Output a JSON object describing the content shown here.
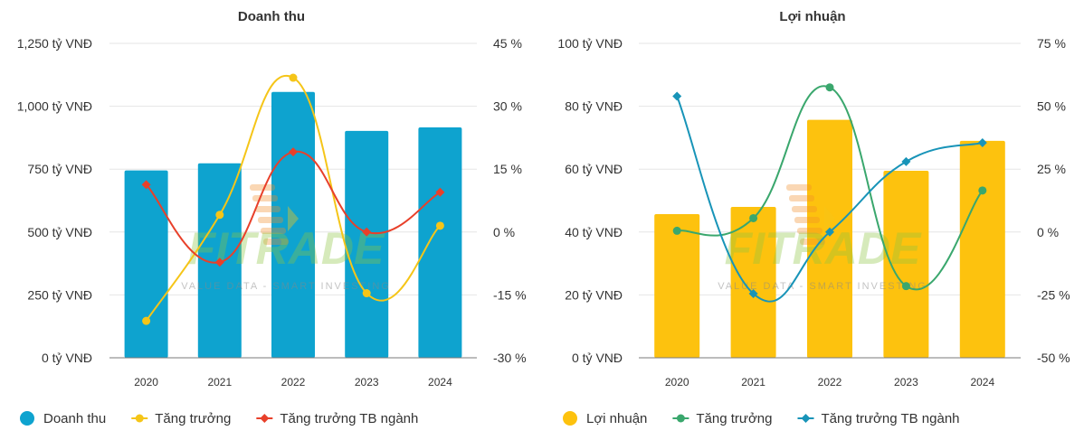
{
  "charts": [
    {
      "type": "bar+line",
      "title": "Doanh thu",
      "categories": [
        "2020",
        "2021",
        "2022",
        "2023",
        "2024"
      ],
      "bar_series": {
        "name": "Doanh thu",
        "values": [
          745,
          773,
          1057,
          902,
          916
        ],
        "color": "#0ea3cf"
      },
      "line_series": [
        {
          "name": "Tăng trưởng",
          "values": [
            -21.2,
            4.1,
            36.8,
            -14.6,
            1.5
          ],
          "color": "#f5c518",
          "marker": "circle"
        },
        {
          "name": "Tăng trưởng TB ngành",
          "values": [
            11.3,
            -7.2,
            19.1,
            0,
            9.5
          ],
          "color": "#e8402a",
          "marker": "diamond"
        }
      ],
      "left_axis": {
        "min": 0,
        "max": 1250,
        "ticks": [
          0,
          250,
          500,
          750,
          1000,
          1250
        ],
        "tick_labels": [
          "0 tỷ VNĐ",
          "250 tỷ VNĐ",
          "500 tỷ VNĐ",
          "750 tỷ VNĐ",
          "1,000 tỷ VNĐ",
          "1,250 tỷ VNĐ"
        ]
      },
      "right_axis": {
        "min": -30,
        "max": 45,
        "ticks": [
          -30,
          -15,
          0,
          15,
          30,
          45
        ],
        "tick_labels": [
          "-30 %",
          "-15 %",
          "0 %",
          "15 %",
          "30 %",
          "45 %"
        ]
      },
      "legend": [
        {
          "label": "Doanh thu",
          "kind": "bar",
          "color": "#0ea3cf"
        },
        {
          "label": "Tăng trưởng",
          "kind": "circle",
          "color": "#f5c518"
        },
        {
          "label": "Tăng trưởng TB ngành",
          "kind": "diamond",
          "color": "#e8402a"
        }
      ]
    },
    {
      "type": "bar+line",
      "title": "Lợi nhuận",
      "categories": [
        "2020",
        "2021",
        "2022",
        "2023",
        "2024"
      ],
      "bar_series": {
        "name": "Lợi nhuận",
        "values": [
          45.7,
          48,
          75.7,
          59.5,
          69
        ],
        "color": "#fdc20e"
      },
      "line_series": [
        {
          "name": "Tăng trưởng",
          "values": [
            0.5,
            5.5,
            57.5,
            -21.5,
            16.5
          ],
          "color": "#3aa76d",
          "marker": "circle"
        },
        {
          "name": "Tăng trưởng TB ngành",
          "values": [
            54,
            -24.5,
            0,
            28,
            35.5
          ],
          "color": "#1894b8",
          "marker": "diamond"
        }
      ],
      "left_axis": {
        "min": 0,
        "max": 100,
        "ticks": [
          0,
          20,
          40,
          60,
          80,
          100
        ],
        "tick_labels": [
          "0 tỷ VNĐ",
          "20 tỷ VNĐ",
          "40 tỷ VNĐ",
          "60 tỷ VNĐ",
          "80 tỷ VNĐ",
          "100 tỷ VNĐ"
        ]
      },
      "right_axis": {
        "min": -50,
        "max": 75,
        "ticks": [
          -50,
          -25,
          0,
          25,
          50,
          75
        ],
        "tick_labels": [
          "-50 %",
          "-25 %",
          "0 %",
          "25 %",
          "50 %",
          "75 %"
        ]
      },
      "legend": [
        {
          "label": "Lợi nhuận",
          "kind": "bar",
          "color": "#fdc20e"
        },
        {
          "label": "Tăng trưởng",
          "kind": "circle",
          "color": "#3aa76d"
        },
        {
          "label": "Tăng trưởng TB ngành",
          "kind": "diamond",
          "color": "#1894b8"
        }
      ]
    }
  ],
  "chart_data": [
    {
      "type": "bar",
      "title": "Doanh thu",
      "categories": [
        "2020",
        "2021",
        "2022",
        "2023",
        "2024"
      ],
      "series": [
        {
          "name": "Doanh thu",
          "axis": "left",
          "values": [
            745,
            773,
            1057,
            902,
            916
          ]
        },
        {
          "name": "Tăng trưởng",
          "axis": "right",
          "type": "line",
          "values": [
            -21.2,
            4.1,
            36.8,
            -14.6,
            1.5
          ]
        },
        {
          "name": "Tăng trưởng TB ngành",
          "axis": "right",
          "type": "line",
          "values": [
            11.3,
            -7.2,
            19.1,
            0,
            9.5
          ]
        }
      ],
      "ylabel": "tỷ VNĐ",
      "ylim": [
        0,
        1250
      ],
      "y2label": "%",
      "y2lim": [
        -30,
        45
      ]
    },
    {
      "type": "bar",
      "title": "Lợi nhuận",
      "categories": [
        "2020",
        "2021",
        "2022",
        "2023",
        "2024"
      ],
      "series": [
        {
          "name": "Lợi nhuận",
          "axis": "left",
          "values": [
            45.7,
            48,
            75.7,
            59.5,
            69
          ]
        },
        {
          "name": "Tăng trưởng",
          "axis": "right",
          "type": "line",
          "values": [
            0.5,
            5.5,
            57.5,
            -21.5,
            16.5
          ]
        },
        {
          "name": "Tăng trưởng TB ngành",
          "axis": "right",
          "type": "line",
          "values": [
            54,
            -24.5,
            0,
            28,
            35.5
          ]
        }
      ],
      "ylabel": "tỷ VNĐ",
      "ylim": [
        0,
        100
      ],
      "y2label": "%",
      "y2lim": [
        -50,
        75
      ]
    }
  ],
  "watermark": {
    "brand": "FITRADE",
    "tagline": "VALUE DATA - SMART INVESTING"
  }
}
